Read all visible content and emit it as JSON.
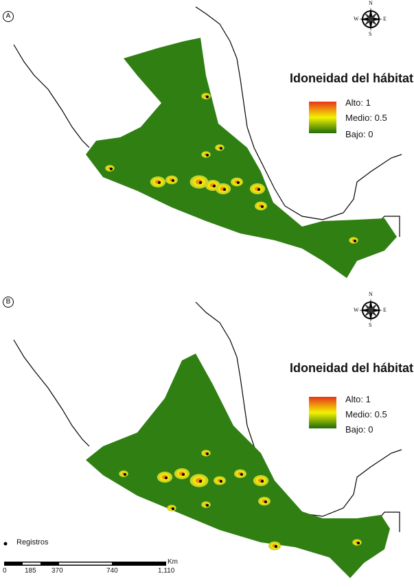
{
  "panels": [
    {
      "label": "A",
      "legend": {
        "title": "Idoneidad del hábitat",
        "high": "Alto: 1",
        "mid": "Medio: 0.5",
        "low": "Bajo: 0"
      }
    },
    {
      "label": "B",
      "legend": {
        "title": "Idoneidad del hábitat",
        "high": "Alto: 1",
        "mid": "Medio: 0.5",
        "low": "Bajo: 0"
      }
    }
  ],
  "compass": {
    "n": "N",
    "s": "S",
    "e": "E",
    "w": "W"
  },
  "records_legend": "Registros",
  "scale": {
    "unit": "Km",
    "ticks": [
      "0",
      "185",
      "370",
      "740",
      "1,110"
    ]
  },
  "colors": {
    "low": "#2e7d0f",
    "mid": "#f2f200",
    "high": "#e8331a",
    "land": "#2f7f13",
    "records": "#000000"
  }
}
